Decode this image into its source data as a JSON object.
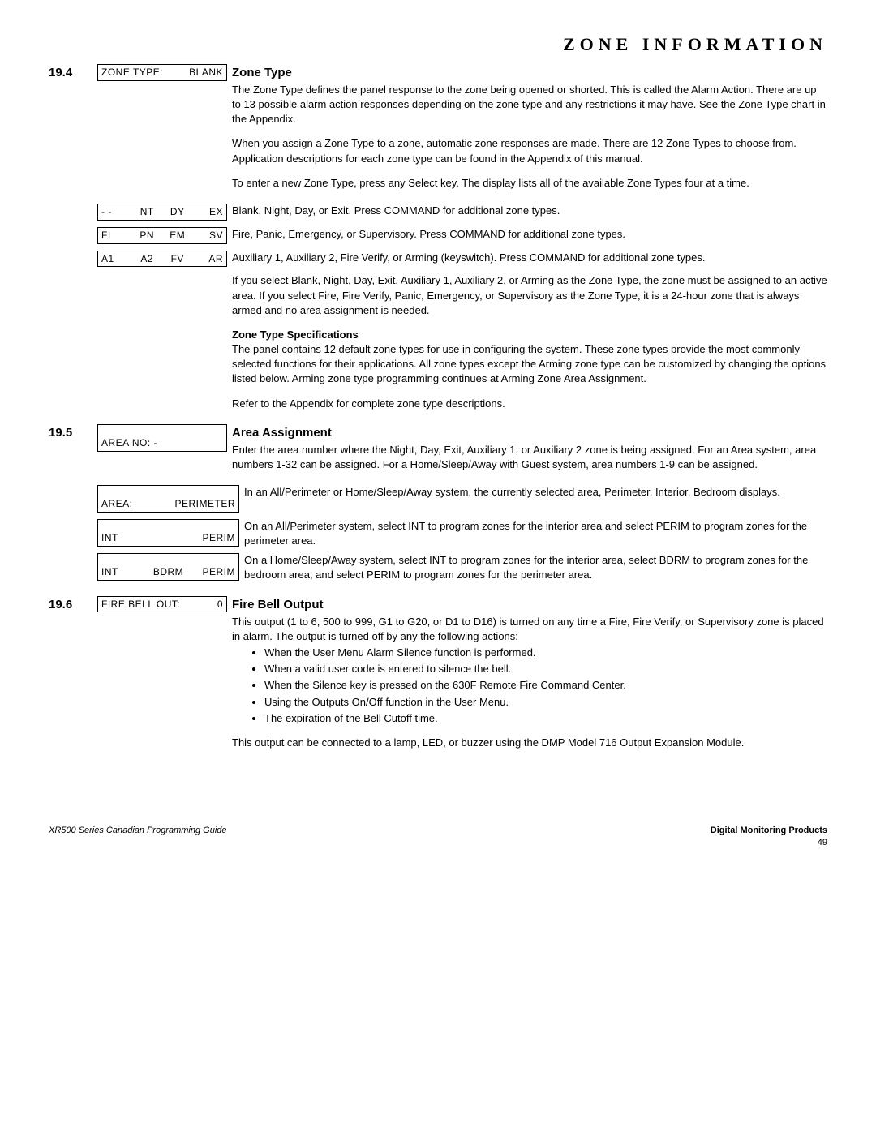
{
  "header": "ZONE INFORMATION",
  "s194": {
    "num": "19.4",
    "lcd": {
      "l": "ZONE TYPE:",
      "r": "BLANK"
    },
    "title": "Zone Type",
    "p1": "The Zone Type defines the panel response to the zone being opened or shorted. This is called the Alarm Action.  There are up to 13 possible alarm action responses depending on the zone type and any restrictions it may have.  See the Zone Type chart in the Appendix.",
    "p2": "When you assign a Zone Type to a zone, automatic zone responses are made.  There are 12 Zone Types to choose from.  Application descriptions for each zone type can be found in the Appendix of this manual.",
    "p3": "To enter a new Zone Type, press any Select key.  The display lists all of the available Zone Types four at a time.",
    "row1": {
      "a": "- -",
      "b": "NT",
      "c": "DY",
      "d": "EX",
      "txt": "Blank, Night, Day, or Exit.  Press COMMAND for additional zone types."
    },
    "row2": {
      "a": "FI",
      "b": "PN",
      "c": "EM",
      "d": "SV",
      "txt": "Fire, Panic, Emergency, or Supervisory.  Press COMMAND for additional zone types."
    },
    "row3": {
      "a": "A1",
      "b": "A2",
      "c": "FV",
      "d": "AR",
      "txt": "Auxiliary 1, Auxiliary 2, Fire Verify, or Arming (keyswitch).  Press COMMAND for additional zone types."
    },
    "p4": "If you select Blank, Night, Day, Exit, Auxiliary 1, Auxiliary 2, or Arming as the Zone Type, the zone must be assigned to an active area.  If you select Fire, Fire Verify, Panic, Emergency, or Supervisory as the Zone Type, it is a 24-hour zone that is always armed and no area assignment is needed.",
    "sub": "Zone Type Specifications",
    "p5": "The panel contains 12 default zone types for use in configuring the system.  These zone types provide the most commonly selected functions for their applications.  All zone types except the Arming zone type can be customized by changing the options listed below.  Arming zone type programming continues at Arming Zone Area Assignment.",
    "p6": "Refer to the Appendix for complete zone type descriptions."
  },
  "s195": {
    "num": "19.5",
    "title": "Area Assignment",
    "lcd1": "AREA NO: -",
    "p1": "Enter the area number where the Night, Day, Exit, Auxiliary 1, or Auxiliary 2 zone is being assigned.  For an Area system, area numbers 1-32 can be assigned. For a Home/Sleep/Away with Guest system, area numbers 1-9 can be assigned.",
    "lcd2": {
      "l": "AREA:",
      "r": "PERIMETER"
    },
    "p2": "In an All/Perimeter or Home/Sleep/Away system, the currently selected area, Perimeter, Interior, Bedroom displays.",
    "lcd3": {
      "l": "INT",
      "r": "PERIM"
    },
    "p3": "On an All/Perimeter system, select INT to program zones for the interior area and select PERIM to program zones for the perimeter area.",
    "lcd4": {
      "a": "INT",
      "b": "BDRM",
      "c": "PERIM"
    },
    "p4": "On a Home/Sleep/Away system, select INT to program zones for the interior area, select BDRM to program zones for the bedroom area, and select PERIM to program zones for the perimeter area."
  },
  "s196": {
    "num": "19.6",
    "lcd": {
      "l": "FIRE BELL OUT:",
      "r": "0"
    },
    "title": "Fire Bell Output",
    "p1": "This output (1 to 6, 500 to 999, G1 to G20, or D1 to D16) is turned on any time a Fire, Fire Verify, or Supervisory zone is placed in alarm.  The output is turned off by any the following actions:",
    "b1": "When the User Menu Alarm Silence function is performed.",
    "b2": "When a valid user code is entered to silence the bell.",
    "b3": "When the Silence key is pressed on the 630F Remote Fire Command Center.",
    "b4": "Using the Outputs On/Off function in the User Menu.",
    "b5": "The expiration of the Bell Cutoff time.",
    "p2": "This output can be connected to a lamp, LED, or buzzer using the DMP Model 716 Output Expansion Module."
  },
  "footer": {
    "left": "XR500 Series Canadian Programming Guide",
    "right": "Digital Monitoring Products",
    "page": "49"
  }
}
